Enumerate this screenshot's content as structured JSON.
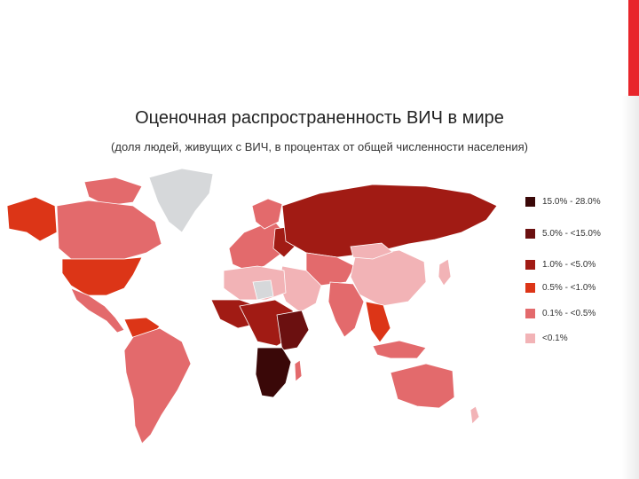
{
  "slide": {
    "accent_color": "#e8252b"
  },
  "title": "Оценочная распространенность ВИЧ в мире",
  "subtitle": "(доля людей, живущих с ВИЧ,  в процентах от общей численности населения)",
  "legend": [
    {
      "label": "15.0% - 28.0%",
      "color": "#3a0808"
    },
    {
      "label": "5.0% - <15.0%",
      "color": "#6b1010"
    },
    {
      "label": "1.0% - <5.0%",
      "color": "#a11b14"
    },
    {
      "label": "0.5% - <1.0%",
      "color": "#dc3517"
    },
    {
      "label": "0.1% - <0.5%",
      "color": "#e36a6c"
    },
    {
      "label": "<0.1%",
      "color": "#f2b3b6"
    }
  ],
  "no_data_color": "#d6d8da"
}
